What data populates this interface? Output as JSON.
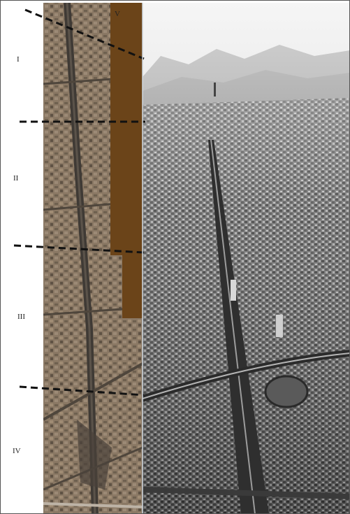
{
  "zones": [
    {
      "id": "I",
      "label": "I"
    },
    {
      "id": "II",
      "label": "II"
    },
    {
      "id": "III",
      "label": "III"
    },
    {
      "id": "IV",
      "label": "IV"
    },
    {
      "id": "V",
      "label": "V"
    }
  ],
  "colors": {
    "overlay_brown": "#6b4419",
    "dash_line": "#111111",
    "label_text": "#222222",
    "aerial_sky": "#dcdcdc",
    "aerial_city": "#7a7a7a",
    "satellite_ground": "#8a7864",
    "avenue": "#3f3a35"
  }
}
